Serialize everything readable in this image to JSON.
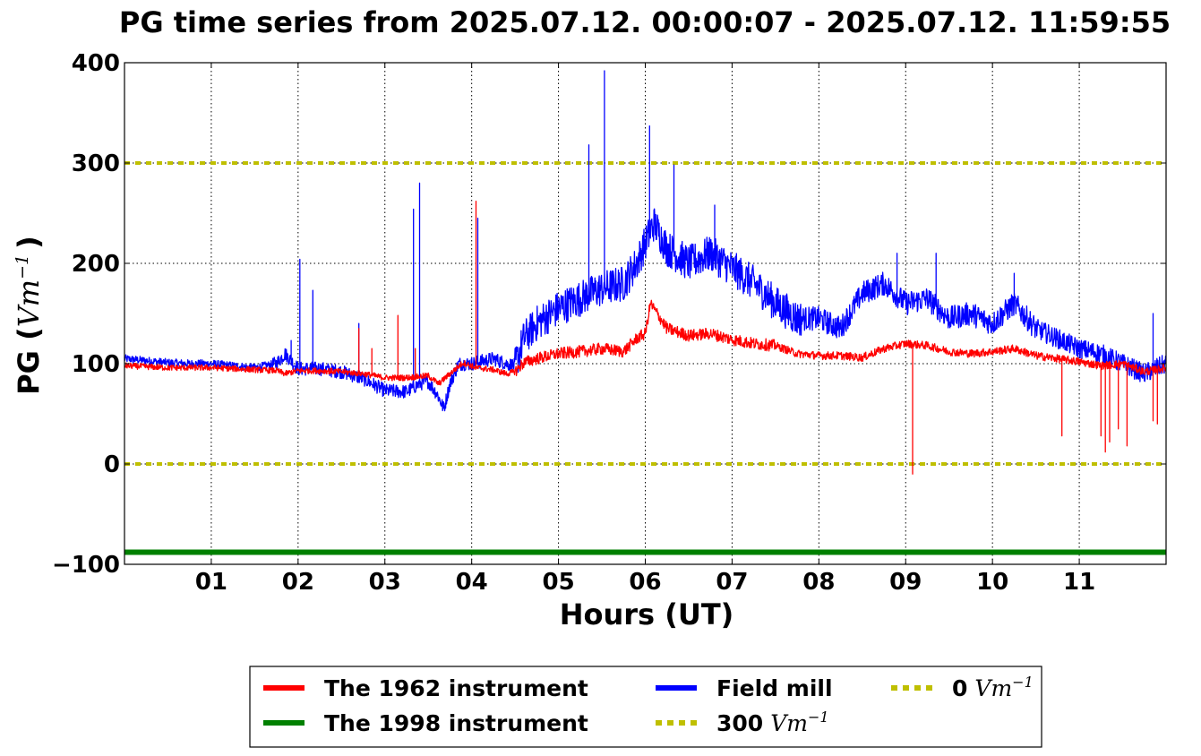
{
  "chart_data": {
    "type": "line",
    "title": "PG time series from 2025.07.12. 00:00:07 - 2025.07.12. 11:59:55",
    "xlabel": "Hours (UT)",
    "ylabel_main": "PG (",
    "ylabel_unit_base": "Vm",
    "ylabel_unit_exp": "−1",
    "ylabel_close": ")",
    "xlim": [
      0,
      12
    ],
    "ylim": [
      -100,
      400
    ],
    "x_ticks": [
      {
        "value": 1,
        "label": "01"
      },
      {
        "value": 2,
        "label": "02"
      },
      {
        "value": 3,
        "label": "03"
      },
      {
        "value": 4,
        "label": "04"
      },
      {
        "value": 5,
        "label": "05"
      },
      {
        "value": 6,
        "label": "06"
      },
      {
        "value": 7,
        "label": "07"
      },
      {
        "value": 8,
        "label": "08"
      },
      {
        "value": 9,
        "label": "09"
      },
      {
        "value": 10,
        "label": "10"
      },
      {
        "value": 11,
        "label": "11"
      }
    ],
    "y_ticks": [
      {
        "value": -100,
        "label": "−100"
      },
      {
        "value": 0,
        "label": "0"
      },
      {
        "value": 100,
        "label": "100"
      },
      {
        "value": 200,
        "label": "200"
      },
      {
        "value": 300,
        "label": "300"
      },
      {
        "value": 400,
        "label": "400"
      }
    ],
    "grid": true,
    "legend_placement": "bottom-center-outside",
    "series": [
      {
        "name": "The 1962 instrument",
        "color": "#ff0000",
        "style": "solid",
        "x": [
          0.0,
          0.25,
          0.5,
          0.75,
          1.0,
          1.25,
          1.5,
          1.75,
          1.85,
          2.0,
          2.25,
          2.5,
          2.75,
          3.0,
          3.25,
          3.5,
          3.62,
          3.75,
          3.9,
          4.05,
          4.25,
          4.4,
          4.5,
          4.6,
          4.75,
          5.0,
          5.25,
          5.5,
          5.75,
          5.9,
          6.0,
          6.06,
          6.25,
          6.5,
          6.75,
          7.0,
          7.25,
          7.5,
          7.75,
          8.0,
          8.25,
          8.5,
          8.75,
          9.0,
          9.25,
          9.5,
          9.75,
          10.0,
          10.25,
          10.5,
          10.75,
          11.0,
          11.25,
          11.5,
          11.75,
          12.0
        ],
        "y": [
          98,
          97,
          96,
          96,
          96,
          95,
          94,
          93,
          90,
          93,
          93,
          92,
          90,
          86,
          86,
          88,
          80,
          90,
          101,
          96,
          94,
          90,
          92,
          101,
          105,
          110,
          112,
          115,
          112,
          125,
          130,
          160,
          135,
          128,
          130,
          124,
          120,
          118,
          110,
          108,
          108,
          106,
          115,
          120,
          118,
          112,
          110,
          112,
          115,
          108,
          105,
          102,
          98,
          100,
          92,
          96
        ],
        "spikes": [
          {
            "x": 2.7,
            "y": 135
          },
          {
            "x": 2.85,
            "y": 115
          },
          {
            "x": 3.15,
            "y": 148
          },
          {
            "x": 3.35,
            "y": 115
          },
          {
            "x": 4.05,
            "y": 262
          },
          {
            "x": 9.08,
            "y": -10
          },
          {
            "x": 10.8,
            "y": 28
          },
          {
            "x": 11.25,
            "y": 28
          },
          {
            "x": 11.3,
            "y": 12
          },
          {
            "x": 11.35,
            "y": 22
          },
          {
            "x": 11.45,
            "y": 35
          },
          {
            "x": 11.55,
            "y": 18
          },
          {
            "x": 11.85,
            "y": 43
          },
          {
            "x": 11.9,
            "y": 40
          }
        ]
      },
      {
        "name": "The 1998 instrument",
        "color": "#008000",
        "style": "solid",
        "x": [
          0,
          12
        ],
        "y": [
          -88,
          -88
        ]
      },
      {
        "name": "Field mill",
        "color": "#0000ff",
        "style": "solid",
        "x": [
          0.0,
          0.25,
          0.5,
          0.75,
          1.0,
          1.25,
          1.5,
          1.75,
          1.85,
          2.0,
          2.25,
          2.5,
          2.75,
          3.0,
          3.25,
          3.4,
          3.5,
          3.6,
          3.68,
          3.75,
          3.85,
          4.0,
          4.25,
          4.4,
          4.5,
          4.6,
          4.75,
          5.0,
          5.25,
          5.5,
          5.75,
          5.9,
          6.0,
          6.1,
          6.25,
          6.5,
          6.75,
          7.0,
          7.25,
          7.5,
          7.75,
          8.0,
          8.25,
          8.5,
          8.75,
          9.0,
          9.25,
          9.5,
          9.75,
          10.0,
          10.25,
          10.5,
          10.75,
          11.0,
          11.25,
          11.5,
          11.75,
          12.0
        ],
        "y": [
          105,
          103,
          101,
          100,
          100,
          98,
          96,
          100,
          110,
          95,
          95,
          92,
          85,
          73,
          72,
          80,
          82,
          70,
          55,
          80,
          100,
          100,
          105,
          100,
          98,
          125,
          140,
          155,
          165,
          175,
          180,
          200,
          220,
          240,
          215,
          200,
          210,
          195,
          180,
          160,
          145,
          145,
          135,
          170,
          180,
          160,
          165,
          145,
          150,
          140,
          160,
          135,
          125,
          115,
          110,
          100,
          90,
          100
        ],
        "spikes": [
          {
            "x": 1.92,
            "y": 123
          },
          {
            "x": 2.02,
            "y": 204
          },
          {
            "x": 2.17,
            "y": 173
          },
          {
            "x": 2.7,
            "y": 140
          },
          {
            "x": 3.33,
            "y": 254
          },
          {
            "x": 3.4,
            "y": 280
          },
          {
            "x": 4.07,
            "y": 245
          },
          {
            "x": 5.35,
            "y": 318
          },
          {
            "x": 5.53,
            "y": 392
          },
          {
            "x": 6.05,
            "y": 337
          },
          {
            "x": 6.33,
            "y": 298
          },
          {
            "x": 6.8,
            "y": 258
          },
          {
            "x": 8.9,
            "y": 210
          },
          {
            "x": 9.35,
            "y": 210
          },
          {
            "x": 10.25,
            "y": 190
          },
          {
            "x": 11.85,
            "y": 150
          }
        ]
      },
      {
        "name": "300 Vm⁻¹",
        "legend_text": "300",
        "color": "#bfbf00",
        "style": "dotted",
        "x": [
          0,
          12
        ],
        "y": [
          300,
          300
        ]
      },
      {
        "name": "0 Vm⁻¹",
        "legend_text": "0",
        "color": "#bfbf00",
        "style": "dotted",
        "x": [
          0,
          12
        ],
        "y": [
          0,
          0
        ]
      }
    ],
    "legend": {
      "unit_base": "Vm",
      "unit_exp": "−1"
    }
  }
}
